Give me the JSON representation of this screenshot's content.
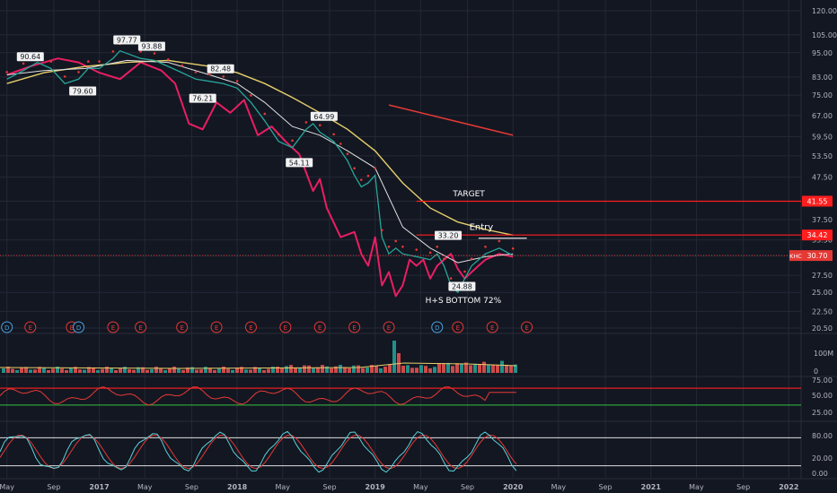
{
  "chart_data": {
    "type": "line",
    "symbol": "KHC",
    "last_price": 30.7,
    "price_axis": {
      "scale": "log",
      "ticks": [
        120.0,
        105.0,
        95.0,
        83.0,
        75.0,
        67.0,
        59.5,
        53.5,
        47.5,
        41.55,
        37.5,
        33.5,
        30.7,
        27.5,
        25.0,
        22.5,
        20.5
      ],
      "tick_labels": [
        "120.00",
        "105.00",
        "95.00",
        "83.00",
        "75.00",
        "67.00",
        "59.50",
        "53.50",
        "47.50",
        "41.55",
        "37.50",
        "33.50",
        "30.70",
        "27.50",
        "25.00",
        "22.50",
        "20.50"
      ]
    },
    "time_axis": {
      "labels": [
        "May",
        "Sep",
        "2017",
        "May",
        "Sep",
        "2018",
        "May",
        "Sep",
        "2019",
        "May",
        "Sep",
        "2020",
        "May",
        "Sep",
        "2021",
        "May",
        "Sep",
        "2022"
      ],
      "values": [
        2016.33,
        2016.67,
        2017.0,
        2017.33,
        2017.67,
        2018.0,
        2018.33,
        2018.67,
        2019.0,
        2019.33,
        2019.67,
        2020.0,
        2020.33,
        2020.67,
        2021.0,
        2021.33,
        2021.67,
        2022.0
      ]
    },
    "price_series": {
      "name": "KHC",
      "x": [
        2016.33,
        2016.45,
        2016.55,
        2016.65,
        2016.75,
        2016.85,
        2016.92,
        2017.0,
        2017.1,
        2017.15,
        2017.3,
        2017.4,
        2017.5,
        2017.6,
        2017.7,
        2017.8,
        2017.9,
        2018.0,
        2018.1,
        2018.2,
        2018.3,
        2018.4,
        2018.5,
        2018.55,
        2018.6,
        2018.7,
        2018.75,
        2018.8,
        2018.85,
        2018.9,
        2018.95,
        2019.0,
        2019.05,
        2019.1,
        2019.15,
        2019.2,
        2019.3,
        2019.4,
        2019.45,
        2019.5,
        2019.55,
        2019.6,
        2019.65,
        2019.7,
        2019.8,
        2019.9,
        2020.0
      ],
      "values": [
        82,
        86,
        90,
        87,
        80,
        82,
        87,
        87,
        92,
        96,
        92,
        91,
        88,
        85,
        82,
        81,
        80,
        78,
        72,
        65,
        58,
        56,
        62,
        64,
        61,
        58,
        55,
        52,
        48,
        45,
        46,
        48,
        34,
        31,
        32,
        31,
        30.5,
        30,
        31,
        29,
        26,
        25,
        27,
        29,
        31,
        32,
        30.7
      ]
    },
    "sma_50": {
      "x": [
        2016.33,
        2016.6,
        2016.9,
        2017.2,
        2017.5,
        2017.8,
        2018.0,
        2018.2,
        2018.4,
        2018.6,
        2018.8,
        2019.0,
        2019.2,
        2019.4,
        2019.6,
        2019.8,
        2020.0
      ],
      "values": [
        84,
        86,
        87,
        91,
        90,
        84,
        80,
        72,
        63,
        60,
        55,
        50,
        36,
        32,
        29.5,
        30.5,
        31
      ]
    },
    "sma_200": {
      "x": [
        2016.33,
        2016.6,
        2016.9,
        2017.2,
        2017.5,
        2017.8,
        2018.0,
        2018.2,
        2018.4,
        2018.6,
        2018.8,
        2019.0,
        2019.2,
        2019.4,
        2019.6,
        2019.8,
        2020.0
      ],
      "values": [
        80,
        85,
        88,
        90,
        91,
        88,
        85,
        80,
        74,
        68,
        62,
        55,
        46,
        40,
        37,
        35.5,
        34.4
      ]
    },
    "comparison_series": {
      "x": [
        2016.33,
        2016.5,
        2016.7,
        2016.85,
        2017.0,
        2017.15,
        2017.3,
        2017.45,
        2017.55,
        2017.65,
        2017.75,
        2017.85,
        2017.95,
        2018.05,
        2018.15,
        2018.25,
        2018.35,
        2018.45,
        2018.55,
        2018.6,
        2018.65,
        2018.75,
        2018.85,
        2018.9,
        2018.95,
        2019.0,
        2019.05,
        2019.1,
        2019.15,
        2019.2,
        2019.25,
        2019.3,
        2019.35,
        2019.4,
        2019.45,
        2019.5,
        2019.55,
        2019.6,
        2019.65,
        2019.7,
        2019.75,
        2019.8,
        2019.9,
        2020.0
      ],
      "values": [
        84,
        88,
        92,
        90,
        85,
        82,
        90,
        86,
        80,
        64,
        62,
        72,
        68,
        73,
        60,
        63,
        58,
        54,
        44,
        47,
        40,
        34,
        35,
        31,
        29,
        34,
        26,
        28,
        24.5,
        26,
        30,
        29,
        30,
        27,
        29,
        30,
        31,
        28.5,
        27,
        28,
        29,
        30,
        31,
        30.5
      ]
    },
    "annotations": [
      {
        "text": "90.64",
        "x": 2016.5,
        "y": 92
      },
      {
        "text": "97.77",
        "x": 2017.2,
        "y": 101
      },
      {
        "text": "93.88",
        "x": 2017.38,
        "y": 97.5
      },
      {
        "text": "79.60",
        "x": 2016.88,
        "y": 76
      },
      {
        "text": "82.48",
        "x": 2017.88,
        "y": 86
      },
      {
        "text": "76.21",
        "x": 2017.75,
        "y": 73
      },
      {
        "text": "64.99",
        "x": 2018.63,
        "y": 66
      },
      {
        "text": "54.11",
        "x": 2018.45,
        "y": 51
      },
      {
        "text": "33.20",
        "x": 2019.53,
        "y": 34
      },
      {
        "text": "24.88",
        "x": 2019.63,
        "y": 25.6
      },
      {
        "text": "TARGET",
        "x": 2019.68,
        "y": 42.7
      },
      {
        "text": "Entry",
        "x": 2019.77,
        "y": 35.4
      },
      {
        "text": "H+S BOTTOM 72%",
        "x": 2019.64,
        "y": 23.6
      }
    ],
    "target_line": {
      "y": 41.55,
      "x_start": 2019.3,
      "label": "TARGET"
    },
    "resistance_line": {
      "y": 34.42,
      "x_start": 2019.3
    },
    "entry_line": {
      "y": 33.8,
      "x_start": 2019.75,
      "x_end": 2020.1,
      "label": "Entry"
    },
    "trend_line": {
      "x": [
        2019.1,
        2020.0
      ],
      "y": [
        71,
        60
      ]
    },
    "event_markers": [
      {
        "type": "D",
        "x": 2016.33
      },
      {
        "type": "E",
        "x": 2016.5
      },
      {
        "type": "E",
        "x": 2016.8
      },
      {
        "type": "D",
        "x": 2016.85
      },
      {
        "type": "E",
        "x": 2017.1
      },
      {
        "type": "E",
        "x": 2017.3
      },
      {
        "type": "E",
        "x": 2017.6
      },
      {
        "type": "E",
        "x": 2017.85
      },
      {
        "type": "E",
        "x": 2018.1
      },
      {
        "type": "E",
        "x": 2018.35
      },
      {
        "type": "E",
        "x": 2018.6
      },
      {
        "type": "E",
        "x": 2018.85
      },
      {
        "type": "E",
        "x": 2019.1
      },
      {
        "type": "D",
        "x": 2019.45
      },
      {
        "type": "E",
        "x": 2019.6
      },
      {
        "type": "E",
        "x": 2019.85
      },
      {
        "type": "E",
        "x": 2020.1
      }
    ],
    "volume_axis": {
      "ticks": [
        "100M",
        "0"
      ]
    },
    "indicator1_axis": {
      "ticks": [
        "75.00",
        "50.00",
        "25.00"
      ],
      "upper_band": 70,
      "lower_band": 30
    },
    "indicator2_axis": {
      "ticks": [
        "80.00",
        "20.00",
        "0.00"
      ],
      "upper_band": 80,
      "lower_band": 20
    },
    "grid": true
  },
  "colors": {
    "background": "#131722",
    "grid": "#232836",
    "axis_text": "#b2b5be",
    "price": "#26a69a",
    "comparison": "#e91e63",
    "sma_200": "#e6cf6b",
    "sma_50": "#e0e0e0",
    "red_line": "#ff1e1e",
    "green_line": "#2e9e3a",
    "dots": "#e53935"
  }
}
